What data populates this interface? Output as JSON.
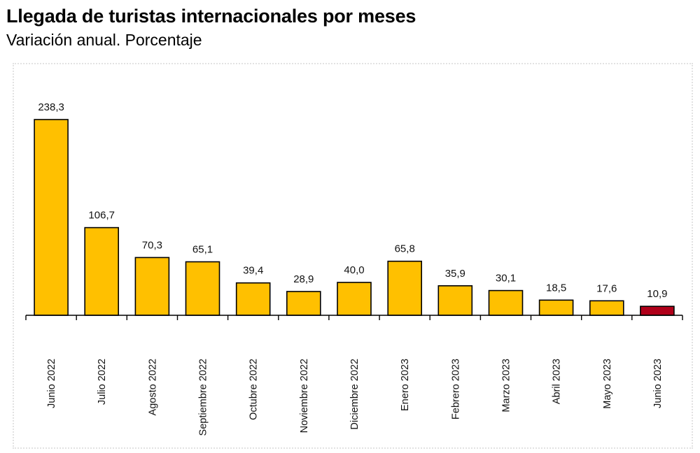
{
  "header": {
    "title": "Llegada de turistas internacionales por meses",
    "subtitle": "Variación anual. Porcentaje"
  },
  "chart_data": {
    "type": "bar",
    "title": "Llegada de turistas internacionales por meses",
    "subtitle": "Variación anual. Porcentaje",
    "xlabel": "",
    "ylabel": "",
    "categories": [
      "Junio 2022",
      "Julio 2022",
      "Agosto 2022",
      "Septiembre 2022",
      "Octubre 2022",
      "Noviembre 2022",
      "Diciembre 2022",
      "Enero 2023",
      "Febrero 2023",
      "Marzo 2023",
      "Abril 2023",
      "Mayo 2023",
      "Junio 2023"
    ],
    "values": [
      238.3,
      106.7,
      70.3,
      65.1,
      39.4,
      28.9,
      40.0,
      65.8,
      35.9,
      30.1,
      18.5,
      17.6,
      10.9
    ],
    "value_labels": [
      "238,3",
      "106,7",
      "70,3",
      "65,1",
      "39,4",
      "28,9",
      "40,0",
      "65,8",
      "35,9",
      "30,1",
      "18,5",
      "17,6",
      "10,9"
    ],
    "ylim": [
      0,
      238.3
    ],
    "grid": false,
    "legend": "none",
    "colors": {
      "bar": "#FFC000",
      "highlight_bar": "#B0001A",
      "bar_outline": "#000000"
    },
    "highlight_index": 12
  }
}
